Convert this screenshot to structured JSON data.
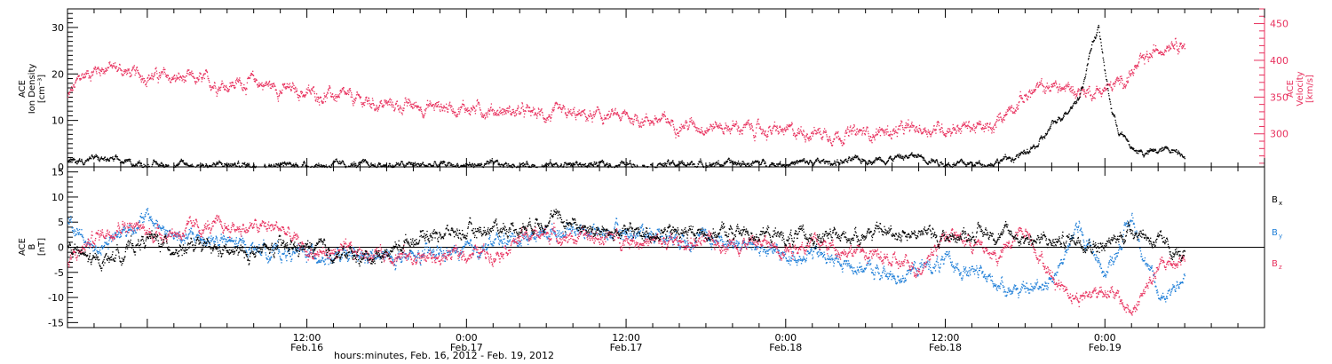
{
  "colors": {
    "black": "#000000",
    "density": "#000000",
    "velocity": "#e8315e",
    "bx": "#000000",
    "by": "#1f7fd8",
    "bz": "#e8315e",
    "axis_right_top": "#e8315e"
  },
  "chart_data": [
    {
      "type": "scatter",
      "panel": "top",
      "x_axis": {
        "domain_hours": [
          -6,
          84
        ],
        "ticks": [
          {
            "hour": 12,
            "time": "12:00",
            "date": "Feb.16"
          },
          {
            "hour": 24,
            "time": "0:00",
            "date": "Feb.17"
          },
          {
            "hour": 36,
            "time": "12:00",
            "date": "Feb.17"
          },
          {
            "hour": 48,
            "time": "0:00",
            "date": "Feb.18"
          },
          {
            "hour": 60,
            "time": "12:00",
            "date": "Feb.18"
          },
          {
            "hour": 72,
            "time": "0:00",
            "date": "Feb.19"
          }
        ]
      },
      "y_left": {
        "lines": [
          "ACE",
          "Ion Density",
          "[cm⁻³]"
        ],
        "ylim": [
          0,
          34
        ],
        "ticks": [
          0,
          10,
          20,
          30
        ],
        "tick_labels": [
          "0",
          "10",
          "20",
          "30"
        ]
      },
      "y_right": {
        "lines": [
          "ACE",
          "Velocity",
          "[km/s]"
        ],
        "ylim": [
          255,
          470
        ],
        "ticks": [
          300,
          350,
          400,
          450
        ],
        "tick_labels": [
          "300",
          "350",
          "400",
          "450"
        ]
      },
      "series": [
        {
          "key": "density",
          "x": [
            -6,
            -4,
            -2,
            0,
            4,
            8,
            12,
            16,
            20,
            24,
            28,
            32,
            36,
            40,
            44,
            48,
            52,
            56,
            58,
            60,
            62,
            63.5,
            64,
            65,
            66,
            67,
            68,
            69,
            70,
            70.5,
            71,
            71.5,
            72,
            72.5,
            73,
            73.5,
            74,
            75,
            76,
            77,
            78
          ],
          "y": [
            1.0,
            2.0,
            1.2,
            0.6,
            0.5,
            0.5,
            0.5,
            0.5,
            0.5,
            0.5,
            0.5,
            0.6,
            0.6,
            0.7,
            0.8,
            0.9,
            1.2,
            2.0,
            2.5,
            0.8,
            0.7,
            1.0,
            1.5,
            2.0,
            3.0,
            5.0,
            9.0,
            12.0,
            15.0,
            20.0,
            27.0,
            30.0,
            20.0,
            12.0,
            8.0,
            6.0,
            4.0,
            3.0,
            3.5,
            4.0,
            3.0
          ]
        },
        {
          "key": "velocity",
          "x": [
            -6,
            -5,
            -4,
            -3,
            -2,
            -1,
            0,
            2,
            4,
            6,
            8,
            10,
            12,
            14,
            16,
            18,
            20,
            22,
            24,
            26,
            28,
            30,
            32,
            34,
            36,
            38,
            40,
            42,
            44,
            46,
            48,
            50,
            52,
            54,
            56,
            58,
            60,
            62,
            63,
            63.7,
            64,
            65,
            66,
            67,
            68,
            69,
            70,
            71,
            71.5,
            72,
            73,
            74,
            75,
            76,
            77,
            78
          ],
          "y": [
            350,
            378,
            388,
            392,
            388,
            380,
            381,
            376,
            372,
            368,
            372,
            362,
            356,
            352,
            345,
            340,
            338,
            338,
            336,
            333,
            330,
            326,
            325,
            324,
            323,
            320,
            314,
            312,
            310,
            306,
            303,
            304,
            300,
            302,
            304,
            307,
            309,
            311,
            306,
            305,
            322,
            340,
            352,
            362,
            365,
            362,
            360,
            358,
            360,
            362,
            368,
            385,
            400,
            415,
            430,
            425
          ]
        }
      ]
    },
    {
      "type": "scatter",
      "panel": "bottom",
      "x_axis": {
        "domain_hours": [
          -6,
          84
        ],
        "xlabel": "hours:minutes, Feb. 16, 2012 - Feb. 19, 2012",
        "ticks": [
          {
            "hour": 12,
            "time": "12:00",
            "date": "Feb.16"
          },
          {
            "hour": 24,
            "time": "0:00",
            "date": "Feb.17"
          },
          {
            "hour": 36,
            "time": "12:00",
            "date": "Feb.17"
          },
          {
            "hour": 48,
            "time": "0:00",
            "date": "Feb.18"
          },
          {
            "hour": 60,
            "time": "12:00",
            "date": "Feb.18"
          },
          {
            "hour": 72,
            "time": "0:00",
            "date": "Feb.19"
          }
        ]
      },
      "y_left": {
        "lines": [
          "ACE",
          "B",
          "[nT]"
        ],
        "ylim": [
          -16,
          16
        ],
        "ticks": [
          -15,
          -10,
          -5,
          0,
          5,
          10,
          15
        ],
        "tick_labels": [
          "-15",
          "-10",
          "-5",
          "0",
          "5",
          "10",
          "15"
        ]
      },
      "legend": {
        "placement": "right",
        "entries": [
          {
            "key": "bx",
            "label": "B",
            "sub": "x"
          },
          {
            "key": "by",
            "label": "B",
            "sub": "y"
          },
          {
            "key": "bz",
            "label": "B",
            "sub": "z"
          }
        ]
      },
      "series": [
        {
          "key": "bx",
          "x": [
            -6,
            -4,
            -2,
            0,
            2,
            4,
            6,
            8,
            10,
            12,
            14,
            16,
            18,
            20,
            22,
            24,
            26,
            28,
            30,
            32,
            34,
            36,
            38,
            40,
            42,
            44,
            46,
            48,
            50,
            52,
            54,
            56,
            58,
            60,
            62,
            64,
            66,
            68,
            70,
            72,
            74,
            76,
            78
          ],
          "y": [
            0,
            -3,
            -1,
            2,
            0,
            0,
            -1,
            -1,
            0,
            0,
            -1,
            -2,
            -1,
            2,
            3,
            3,
            4,
            4,
            6,
            5,
            3,
            3,
            3,
            3,
            3,
            3,
            3,
            2,
            2,
            2,
            3,
            3,
            3,
            2,
            3,
            3,
            2,
            1,
            2,
            0,
            4,
            1,
            -2
          ]
        },
        {
          "key": "by",
          "x": [
            -6,
            -4,
            -2,
            0,
            2,
            4,
            6,
            8,
            10,
            12,
            14,
            16,
            18,
            20,
            22,
            24,
            26,
            28,
            30,
            32,
            34,
            36,
            38,
            40,
            42,
            44,
            46,
            48,
            50,
            52,
            54,
            56,
            58,
            60,
            62,
            64,
            66,
            68,
            70,
            72,
            74,
            76,
            78
          ],
          "y": [
            5,
            0,
            3,
            6,
            2,
            2,
            1,
            0,
            -1,
            -1,
            -2,
            -2,
            -2,
            -2,
            -1,
            -1,
            1,
            2,
            3,
            4,
            3,
            3,
            3,
            2,
            2,
            1,
            0,
            -2,
            -1,
            -3,
            -4,
            -6,
            -4,
            -3,
            -5,
            -7,
            -9,
            -6,
            4,
            -5,
            6,
            -10,
            -6
          ]
        },
        {
          "key": "bz",
          "x": [
            -6,
            -4,
            -2,
            0,
            2,
            4,
            6,
            8,
            10,
            12,
            14,
            16,
            18,
            20,
            22,
            24,
            26,
            28,
            30,
            32,
            34,
            36,
            38,
            40,
            42,
            44,
            46,
            48,
            50,
            52,
            54,
            56,
            58,
            60,
            62,
            64,
            66,
            68,
            70,
            72,
            74,
            76,
            78
          ],
          "y": [
            -3,
            2,
            5,
            3,
            3,
            4,
            4,
            4,
            4,
            -1,
            -1,
            -1,
            -1,
            -2,
            -2,
            -1,
            -1,
            2,
            3,
            2,
            2,
            2,
            1,
            1,
            1,
            1,
            1,
            0,
            1,
            0,
            -1,
            -3,
            -4,
            3,
            1,
            -2,
            4,
            -6,
            -10,
            -8,
            -13,
            -4,
            -2
          ]
        }
      ]
    }
  ]
}
